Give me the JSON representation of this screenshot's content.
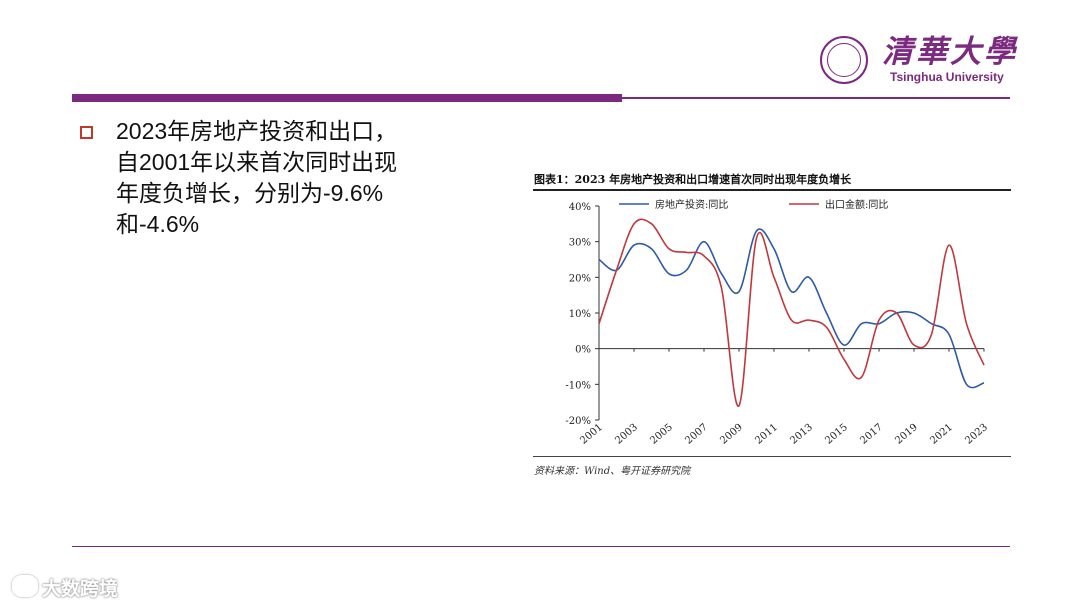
{
  "logo": {
    "cn": "清華大學",
    "en": "Tsinghua University"
  },
  "bullet": {
    "text": "2023年房地产投资和出口，自2001年以来首次同时出现年度负增长，分别为-9.6%和-4.6%"
  },
  "watermark": "大数跨境",
  "chart_data": {
    "type": "line",
    "title": "图表1：2023 年房地产投资和出口增速首次同时出现年度负增长",
    "source": "资料来源：Wind、粤开证券研究院",
    "xlim": [
      2001,
      2023
    ],
    "ylim": [
      -20,
      40
    ],
    "x_ticks": [
      "2001",
      "2003",
      "2005",
      "2007",
      "2009",
      "2011",
      "2013",
      "2015",
      "2017",
      "2019",
      "2021",
      "2023"
    ],
    "y_ticks": [
      "40%",
      "30%",
      "20%",
      "10%",
      "0%",
      "-10%",
      "-20%"
    ],
    "legend_position": "top",
    "grid": false,
    "x": [
      2001,
      2002,
      2003,
      2004,
      2005,
      2006,
      2007,
      2008,
      2009,
      2010,
      2011,
      2012,
      2013,
      2014,
      2015,
      2016,
      2017,
      2018,
      2019,
      2020,
      2021,
      2022,
      2023
    ],
    "series": [
      {
        "name": "房地产投资:同比",
        "color": "#2e5aa8",
        "values": [
          25,
          22,
          29,
          28,
          21,
          22,
          30,
          21,
          16,
          33,
          28,
          16,
          20,
          10,
          1,
          7,
          7,
          10,
          10,
          7,
          4,
          -10,
          -9.6
        ]
      },
      {
        "name": "出口金额:同比",
        "color": "#c0383e",
        "values": [
          7,
          22,
          35,
          35,
          28,
          27,
          26,
          17,
          -16,
          31,
          20,
          8,
          8,
          6,
          -3,
          -8,
          8,
          10,
          1,
          4,
          29,
          7,
          -4.6
        ]
      }
    ]
  }
}
